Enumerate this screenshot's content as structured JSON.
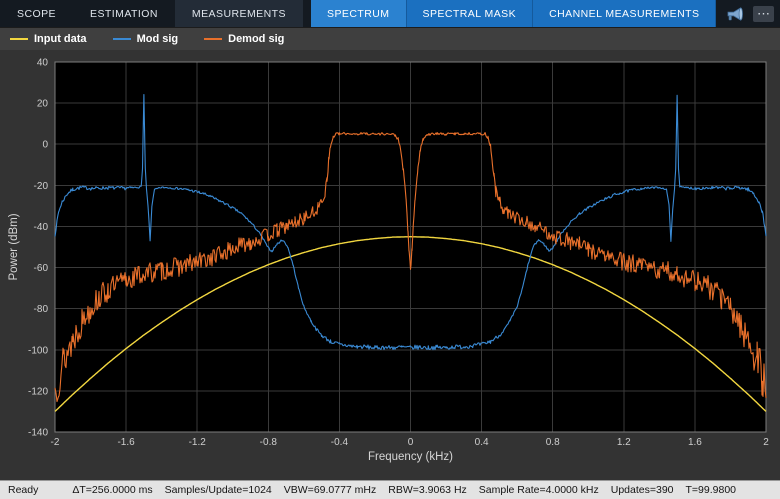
{
  "tabbar": {
    "main_tabs": [
      {
        "label": "SCOPE"
      },
      {
        "label": "ESTIMATION"
      },
      {
        "label": "MEASUREMENTS"
      }
    ],
    "contextual_tabs": [
      {
        "label": "SPECTRUM"
      },
      {
        "label": "SPECTRAL MASK"
      },
      {
        "label": "CHANNEL MEASUREMENTS"
      }
    ],
    "overflow_label": "⋯"
  },
  "legend": {
    "items": [
      {
        "label": "Input data"
      },
      {
        "label": "Mod sig"
      },
      {
        "label": "Demod sig"
      }
    ]
  },
  "statusbar": {
    "state": "Ready",
    "items": [
      "ΔT=256.0000 ms",
      "Samples/Update=1024",
      "VBW=69.0777 mHz",
      "RBW=3.9063 Hz",
      "Sample Rate=4.0000 kHz",
      "Updates=390",
      "T=99.9800"
    ]
  },
  "chart_data": {
    "type": "line",
    "title": "",
    "xlabel": "Frequency (kHz)",
    "ylabel": "Power (dBm)",
    "xlim": [
      -2,
      2
    ],
    "ylim": [
      -140,
      40
    ],
    "xticks": [
      -2,
      -1.6,
      -1.2,
      -0.8,
      -0.4,
      0,
      0.4,
      0.8,
      1.2,
      1.6,
      2
    ],
    "yticks": [
      40,
      20,
      0,
      -20,
      -40,
      -60,
      -80,
      -100,
      -120,
      -140
    ],
    "grid": true,
    "background": "#000000",
    "grid_color": "#3a3a3a",
    "axis_color": "#7d7d7d",
    "tick_label_color": "#cfcfcf",
    "series": [
      {
        "id": "input-data",
        "name": "Input data",
        "color": "#f2d740",
        "stroke_width": 1.4,
        "mirror": true,
        "noise_seed": 0,
        "points": [
          [
            0,
            -45
          ],
          [
            0.1,
            -45.2
          ],
          [
            0.2,
            -45.9
          ],
          [
            0.3,
            -46.9
          ],
          [
            0.4,
            -48.4
          ],
          [
            0.5,
            -50.3
          ],
          [
            0.6,
            -52.7
          ],
          [
            0.7,
            -55.4
          ],
          [
            0.8,
            -58.6
          ],
          [
            0.9,
            -62.2
          ],
          [
            1.0,
            -66.3
          ],
          [
            1.1,
            -70.7
          ],
          [
            1.2,
            -75.6
          ],
          [
            1.3,
            -80.9
          ],
          [
            1.4,
            -86.7
          ],
          [
            1.5,
            -92.8
          ],
          [
            1.6,
            -99.4
          ],
          [
            1.7,
            -106.4
          ],
          [
            1.8,
            -113.9
          ],
          [
            1.9,
            -121.7
          ],
          [
            2,
            -130
          ]
        ]
      },
      {
        "id": "mod-sig",
        "name": "Mod sig",
        "color": "#3a8ad4",
        "stroke_width": 1.1,
        "mirror": true,
        "noise_seed": 7,
        "noise": [
          [
            0,
            1.1
          ],
          [
            0.45,
            1.0
          ],
          [
            0.6,
            0.5
          ],
          [
            0.75,
            0.5
          ],
          [
            0.9,
            0.6
          ],
          [
            1.2,
            0.7
          ],
          [
            1.44,
            0.3
          ],
          [
            1.52,
            0.3
          ],
          [
            1.6,
            0.8
          ],
          [
            2,
            0.9
          ]
        ],
        "points": [
          [
            0,
            -99
          ],
          [
            0.05,
            -98.7
          ],
          [
            0.1,
            -99
          ],
          [
            0.15,
            -98.8
          ],
          [
            0.2,
            -99
          ],
          [
            0.25,
            -98.6
          ],
          [
            0.3,
            -98.5
          ],
          [
            0.35,
            -98
          ],
          [
            0.4,
            -97.4
          ],
          [
            0.45,
            -96
          ],
          [
            0.5,
            -93
          ],
          [
            0.53,
            -90
          ],
          [
            0.56,
            -86
          ],
          [
            0.6,
            -79
          ],
          [
            0.63,
            -70
          ],
          [
            0.66,
            -59
          ],
          [
            0.69,
            -50
          ],
          [
            0.72,
            -46.5
          ],
          [
            0.75,
            -48.5
          ],
          [
            0.78,
            -52
          ],
          [
            0.8,
            -50.5
          ],
          [
            0.83,
            -46
          ],
          [
            0.86,
            -42
          ],
          [
            0.9,
            -38
          ],
          [
            0.95,
            -33.8
          ],
          [
            1.0,
            -31
          ],
          [
            1.05,
            -28.5
          ],
          [
            1.1,
            -26.5
          ],
          [
            1.15,
            -24.5
          ],
          [
            1.2,
            -23.2
          ],
          [
            1.25,
            -22.2
          ],
          [
            1.3,
            -21.6
          ],
          [
            1.35,
            -21.2
          ],
          [
            1.4,
            -21
          ],
          [
            1.44,
            -22
          ],
          [
            1.455,
            -30
          ],
          [
            1.465,
            -47
          ],
          [
            1.475,
            -32
          ],
          [
            1.485,
            -22
          ],
          [
            1.492,
            -12
          ],
          [
            1.5,
            24
          ],
          [
            1.508,
            -12
          ],
          [
            1.515,
            -20.5
          ],
          [
            1.53,
            -21
          ],
          [
            1.6,
            -21.4
          ],
          [
            1.7,
            -21.2
          ],
          [
            1.8,
            -21.5
          ],
          [
            1.85,
            -21
          ],
          [
            1.9,
            -22
          ],
          [
            1.93,
            -24
          ],
          [
            1.96,
            -28
          ],
          [
            1.98,
            -33
          ],
          [
            2,
            -44
          ]
        ]
      },
      {
        "id": "demod-sig",
        "name": "Demod sig",
        "color": "#e8702b",
        "stroke_width": 1.1,
        "mirror": true,
        "noise_seed": 13,
        "noise": [
          [
            0,
            1.5
          ],
          [
            0.05,
            1
          ],
          [
            0.09,
            0.6
          ],
          [
            0.42,
            0.6
          ],
          [
            0.45,
            1.5
          ],
          [
            0.47,
            2.5
          ],
          [
            0.5,
            3
          ],
          [
            0.7,
            3.5
          ],
          [
            0.9,
            4
          ],
          [
            1.1,
            4.5
          ],
          [
            1.4,
            5
          ],
          [
            1.6,
            5.5
          ],
          [
            1.75,
            6
          ],
          [
            1.85,
            7
          ],
          [
            1.92,
            8.5
          ],
          [
            2,
            11
          ]
        ],
        "points": [
          [
            0,
            -61
          ],
          [
            0.008,
            -52
          ],
          [
            0.015,
            -41
          ],
          [
            0.025,
            -27
          ],
          [
            0.04,
            -13
          ],
          [
            0.055,
            -3
          ],
          [
            0.07,
            2.5
          ],
          [
            0.085,
            4.3
          ],
          [
            0.1,
            4.8
          ],
          [
            0.15,
            5.1
          ],
          [
            0.2,
            4.9
          ],
          [
            0.25,
            5.2
          ],
          [
            0.3,
            5
          ],
          [
            0.35,
            5.2
          ],
          [
            0.4,
            5
          ],
          [
            0.42,
            5.1
          ],
          [
            0.435,
            3.5
          ],
          [
            0.45,
            -1
          ],
          [
            0.46,
            -8
          ],
          [
            0.47,
            -16
          ],
          [
            0.48,
            -23
          ],
          [
            0.5,
            -28
          ],
          [
            0.52,
            -31
          ],
          [
            0.55,
            -33.5
          ],
          [
            0.6,
            -36
          ],
          [
            0.65,
            -38
          ],
          [
            0.7,
            -40
          ],
          [
            0.75,
            -42
          ],
          [
            0.8,
            -44
          ],
          [
            0.85,
            -46
          ],
          [
            0.9,
            -47.5
          ],
          [
            0.95,
            -49
          ],
          [
            1.0,
            -51
          ],
          [
            1.1,
            -54.5
          ],
          [
            1.2,
            -57.5
          ],
          [
            1.3,
            -59.5
          ],
          [
            1.4,
            -61.5
          ],
          [
            1.5,
            -63
          ],
          [
            1.6,
            -66
          ],
          [
            1.7,
            -71
          ],
          [
            1.75,
            -74.5
          ],
          [
            1.8,
            -79.5
          ],
          [
            1.85,
            -86.5
          ],
          [
            1.9,
            -95
          ],
          [
            1.95,
            -105
          ],
          [
            1.98,
            -113
          ],
          [
            2,
            -120
          ]
        ]
      }
    ]
  }
}
